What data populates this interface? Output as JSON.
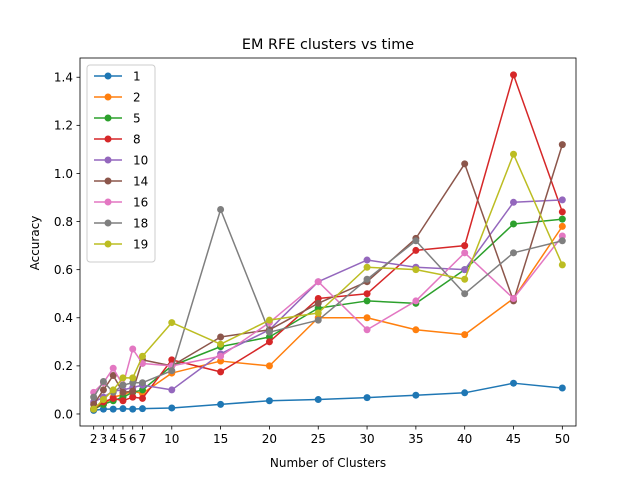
{
  "chart_data": {
    "type": "line",
    "title": "EM RFE clusters vs time",
    "xlabel": "Number of Clusters",
    "ylabel": "Accuracy",
    "xlim": [
      0.6,
      51.4
    ],
    "ylim": [
      -0.05,
      1.48
    ],
    "x": [
      2,
      3,
      4,
      5,
      6,
      7,
      10,
      15,
      20,
      25,
      30,
      35,
      40,
      45,
      50
    ],
    "xticks": [
      2,
      3,
      4,
      5,
      6,
      7,
      10,
      15,
      20,
      25,
      30,
      35,
      40,
      45,
      50
    ],
    "yticks": [
      0.0,
      0.2,
      0.4,
      0.6,
      0.8,
      1.0,
      1.2,
      1.4
    ],
    "ytick_labels": [
      "0.0",
      "0.2",
      "0.4",
      "0.6",
      "0.8",
      "1.0",
      "1.2",
      "1.4"
    ],
    "grid": false,
    "legend_position": "top-left",
    "series": [
      {
        "name": "1",
        "color": "#1f77b4",
        "values": [
          0.015,
          0.02,
          0.02,
          0.022,
          0.02,
          0.022,
          0.025,
          0.04,
          0.055,
          0.06,
          0.068,
          0.078,
          0.088,
          0.128,
          0.108
        ]
      },
      {
        "name": "2",
        "color": "#ff7f0e",
        "values": [
          0.02,
          0.04,
          0.07,
          0.08,
          0.095,
          0.085,
          0.17,
          0.22,
          0.2,
          0.4,
          0.4,
          0.35,
          0.33,
          0.48,
          0.78
        ]
      },
      {
        "name": "5",
        "color": "#2ca02c",
        "values": [
          0.02,
          0.04,
          0.055,
          0.07,
          0.09,
          0.1,
          0.2,
          0.28,
          0.32,
          0.44,
          0.47,
          0.46,
          0.6,
          0.79,
          0.81
        ]
      },
      {
        "name": "8",
        "color": "#d62728",
        "values": [
          0.02,
          0.05,
          0.065,
          0.055,
          0.07,
          0.065,
          0.225,
          0.175,
          0.3,
          0.48,
          0.5,
          0.68,
          0.7,
          1.41,
          0.84
        ]
      },
      {
        "name": "10",
        "color": "#9467bd",
        "values": [
          0.05,
          0.07,
          0.095,
          0.1,
          0.11,
          0.12,
          0.1,
          0.25,
          0.35,
          0.55,
          0.64,
          0.61,
          0.6,
          0.88,
          0.89
        ]
      },
      {
        "name": "14",
        "color": "#8c564b",
        "values": [
          0.04,
          0.1,
          0.16,
          0.09,
          0.095,
          0.225,
          0.2,
          0.32,
          0.35,
          0.46,
          0.55,
          0.73,
          1.04,
          0.47,
          1.12
        ]
      },
      {
        "name": "16",
        "color": "#e377c2",
        "values": [
          0.09,
          0.13,
          0.19,
          0.12,
          0.27,
          0.21,
          0.2,
          0.24,
          0.38,
          0.55,
          0.35,
          0.47,
          0.67,
          0.48,
          0.74
        ]
      },
      {
        "name": "18",
        "color": "#7f7f7f",
        "values": [
          0.07,
          0.135,
          0.09,
          0.12,
          0.13,
          0.13,
          0.18,
          0.85,
          0.34,
          0.39,
          0.56,
          0.72,
          0.5,
          0.67,
          0.72
        ]
      },
      {
        "name": "19",
        "color": "#bcbd22",
        "values": [
          0.02,
          0.06,
          0.1,
          0.15,
          0.15,
          0.24,
          0.38,
          0.29,
          0.39,
          0.42,
          0.61,
          0.6,
          0.56,
          1.08,
          0.62
        ]
      }
    ]
  }
}
